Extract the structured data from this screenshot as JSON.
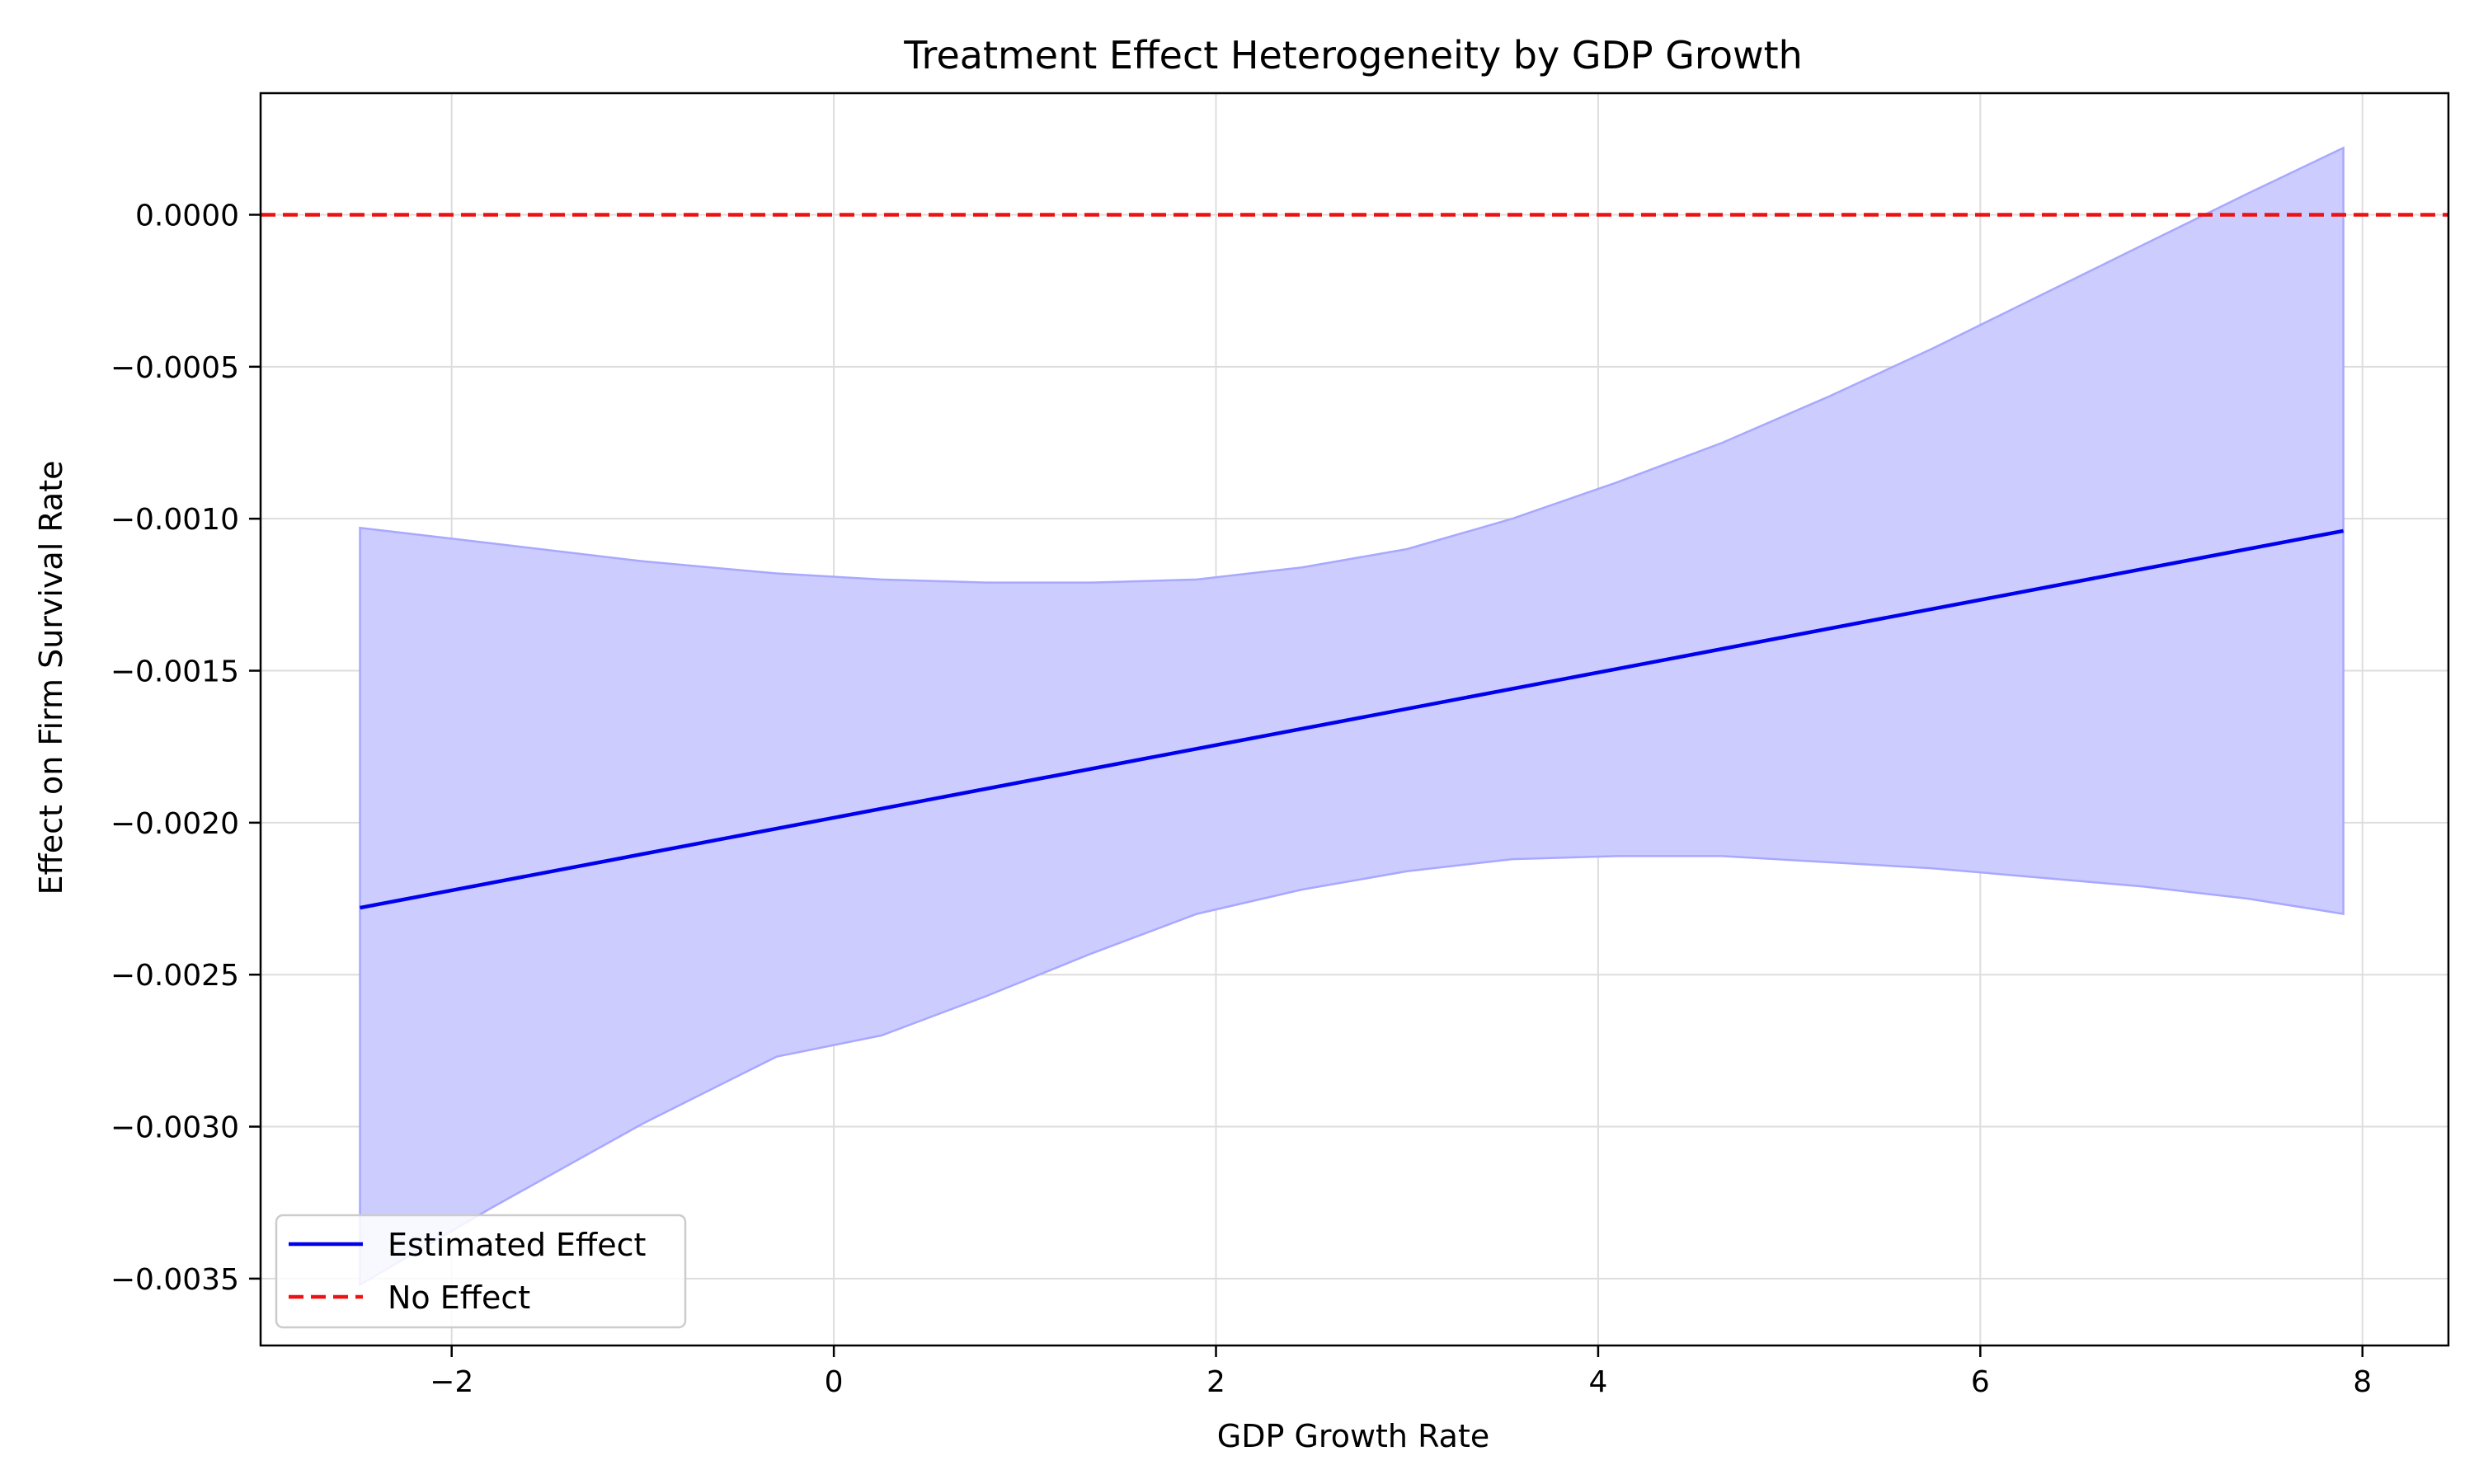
{
  "chart_data": {
    "type": "line",
    "title": "Treatment Effect Heterogeneity by GDP Growth",
    "xlabel": "GDP Growth Rate",
    "ylabel": "Effect on Firm Survival Rate",
    "xlim": [
      -3.0,
      8.45
    ],
    "ylim": [
      -0.00372,
      0.0004
    ],
    "x_ticks": [
      -2,
      0,
      2,
      4,
      6,
      8
    ],
    "x_tick_labels": [
      "−2",
      "0",
      "2",
      "4",
      "6",
      "8"
    ],
    "y_ticks": [
      0.0,
      -0.0005,
      -0.001,
      -0.0015,
      -0.002,
      -0.0025,
      -0.003,
      -0.0035
    ],
    "y_tick_labels": [
      "0.0000",
      "−0.0005",
      "−0.0010",
      "−0.0015",
      "−0.0020",
      "−0.0025",
      "−0.0030",
      "−0.0035"
    ],
    "grid": true,
    "legend_position": "lower-left",
    "series": [
      {
        "name": "Estimated Effect",
        "kind": "line",
        "color": "#0000ee",
        "x": [
          -2.48,
          7.9
        ],
        "y": [
          -0.00228,
          -0.00104
        ]
      },
      {
        "name": "No Effect",
        "kind": "hline",
        "color": "#ee1111",
        "dash": true,
        "y": 0.0
      }
    ],
    "confidence_band": {
      "color": "#ccccff",
      "edge_color": "#a8a8ff",
      "x": [
        -2.48,
        -1.8,
        -1.0,
        -0.3,
        0.25,
        0.8,
        1.35,
        1.9,
        2.45,
        3.0,
        3.55,
        4.1,
        4.65,
        5.2,
        5.75,
        6.3,
        6.85,
        7.4,
        7.9
      ],
      "upper": [
        -0.00103,
        -0.00108,
        -0.00114,
        -0.00118,
        -0.0012,
        -0.00121,
        -0.00121,
        -0.0012,
        -0.00116,
        -0.0011,
        -0.001,
        -0.00088,
        -0.00075,
        -0.0006,
        -0.00044,
        -0.00027,
        -0.0001,
        7e-05,
        0.00022
      ],
      "lower": [
        -0.00352,
        -0.00327,
        -0.00299,
        -0.00277,
        -0.0027,
        -0.00257,
        -0.00243,
        -0.0023,
        -0.00222,
        -0.00216,
        -0.00212,
        -0.00211,
        -0.00211,
        -0.00213,
        -0.00215,
        -0.00218,
        -0.00221,
        -0.00225,
        -0.0023
      ]
    }
  }
}
